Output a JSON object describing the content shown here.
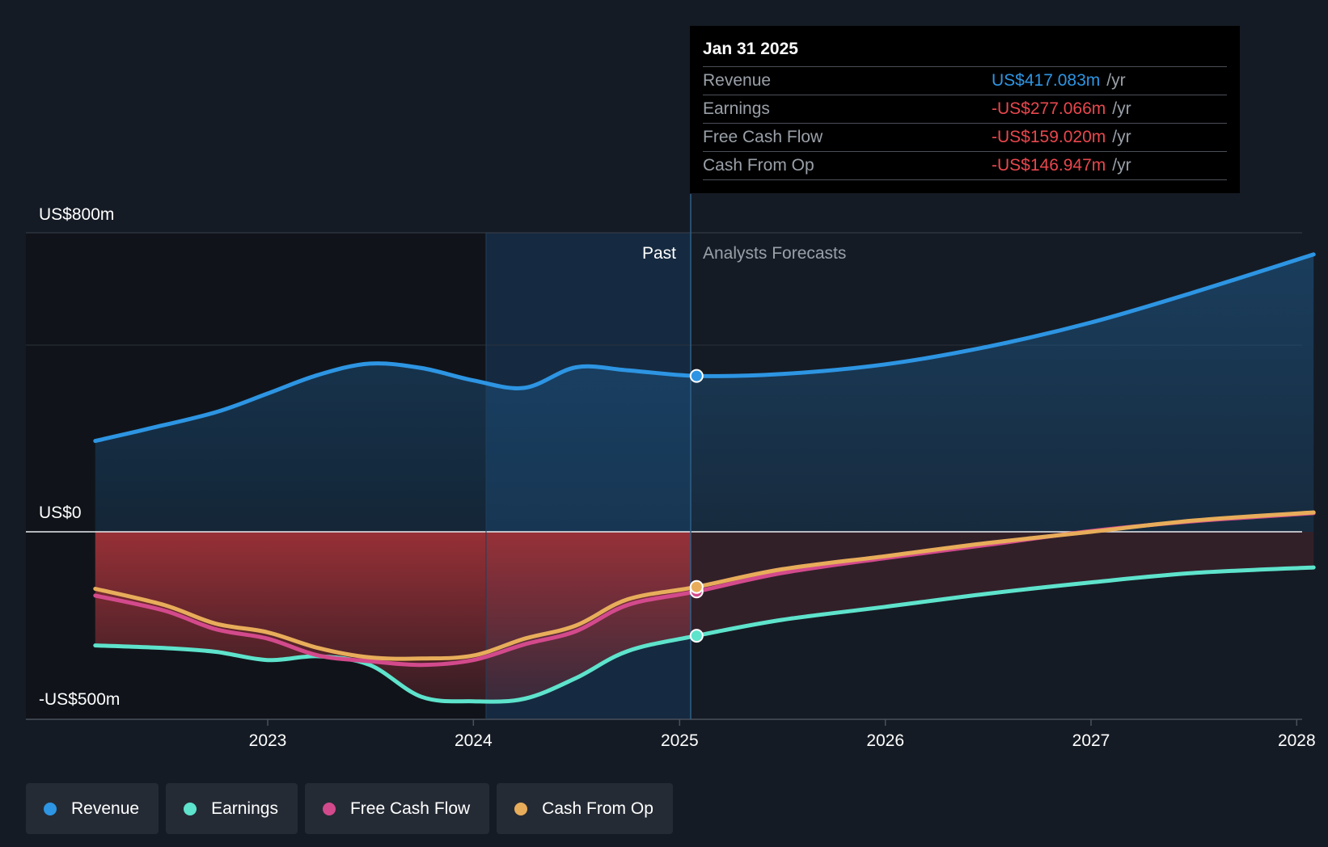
{
  "chart_data": {
    "type": "area",
    "x_ticks": [
      "2023",
      "2024",
      "2025",
      "2026",
      "2027",
      "2028"
    ],
    "y_labels": {
      "top": "US$800m",
      "zero": "US$0",
      "bottom": "-US$500m"
    },
    "ylim": [
      -500,
      800
    ],
    "grid": true,
    "past_label": "Past",
    "forecast_label": "Analysts Forecasts",
    "split_date": "2025-01-31",
    "series": [
      {
        "name": "Revenue",
        "color": "#2d95e3",
        "marker_value": 417.083,
        "points": [
          [
            "2022-03-01",
            243
          ],
          [
            "2022-06-01",
            275
          ],
          [
            "2022-10-01",
            320
          ],
          [
            "2023-01-01",
            370
          ],
          [
            "2023-04-01",
            420
          ],
          [
            "2023-07-01",
            450
          ],
          [
            "2023-10-01",
            438
          ],
          [
            "2024-01-01",
            405
          ],
          [
            "2024-04-01",
            385
          ],
          [
            "2024-07-01",
            440
          ],
          [
            "2024-10-01",
            432
          ],
          [
            "2025-01-31",
            417.083
          ],
          [
            "2025-07-01",
            422
          ],
          [
            "2026-01-01",
            448
          ],
          [
            "2026-07-01",
            495
          ],
          [
            "2027-01-01",
            560
          ],
          [
            "2027-07-01",
            640
          ],
          [
            "2028-01-31",
            742
          ]
        ]
      },
      {
        "name": "Earnings",
        "color": "#5ee3cc",
        "marker_value": -277.066,
        "points": [
          [
            "2022-03-01",
            -303
          ],
          [
            "2022-07-01",
            -310
          ],
          [
            "2022-10-01",
            -320
          ],
          [
            "2023-01-01",
            -342
          ],
          [
            "2023-04-01",
            -332
          ],
          [
            "2023-07-01",
            -355
          ],
          [
            "2023-10-01",
            -440
          ],
          [
            "2024-01-01",
            -452
          ],
          [
            "2024-04-01",
            -445
          ],
          [
            "2024-07-01",
            -390
          ],
          [
            "2024-10-01",
            -318
          ],
          [
            "2025-01-31",
            -277.066
          ],
          [
            "2025-07-01",
            -235
          ],
          [
            "2026-01-01",
            -200
          ],
          [
            "2026-07-01",
            -165
          ],
          [
            "2027-01-01",
            -135
          ],
          [
            "2027-07-01",
            -110
          ],
          [
            "2028-01-31",
            -95
          ]
        ]
      },
      {
        "name": "Free Cash Flow",
        "color": "#d34a8c",
        "marker_value": -159.02,
        "points": [
          [
            "2022-03-01",
            -170
          ],
          [
            "2022-07-01",
            -210
          ],
          [
            "2022-10-01",
            -260
          ],
          [
            "2023-01-01",
            -285
          ],
          [
            "2023-04-01",
            -330
          ],
          [
            "2023-07-01",
            -345
          ],
          [
            "2023-10-01",
            -355
          ],
          [
            "2024-01-01",
            -342
          ],
          [
            "2024-04-01",
            -300
          ],
          [
            "2024-07-01",
            -265
          ],
          [
            "2024-10-01",
            -195
          ],
          [
            "2025-01-31",
            -159.02
          ],
          [
            "2025-07-01",
            -110
          ],
          [
            "2026-01-01",
            -70
          ],
          [
            "2026-07-01",
            -35
          ],
          [
            "2027-01-01",
            2
          ],
          [
            "2027-07-01",
            28
          ],
          [
            "2028-01-31",
            50
          ]
        ]
      },
      {
        "name": "Cash From Op",
        "color": "#e8ad5a",
        "marker_value": -146.947,
        "points": [
          [
            "2022-03-01",
            -152
          ],
          [
            "2022-07-01",
            -195
          ],
          [
            "2022-10-01",
            -245
          ],
          [
            "2023-01-01",
            -268
          ],
          [
            "2023-04-01",
            -310
          ],
          [
            "2023-07-01",
            -335
          ],
          [
            "2023-10-01",
            -338
          ],
          [
            "2024-01-01",
            -330
          ],
          [
            "2024-04-01",
            -285
          ],
          [
            "2024-07-01",
            -250
          ],
          [
            "2024-10-01",
            -180
          ],
          [
            "2025-01-31",
            -146.947
          ],
          [
            "2025-07-01",
            -100
          ],
          [
            "2026-01-01",
            -65
          ],
          [
            "2026-07-01",
            -30
          ],
          [
            "2027-01-01",
            0
          ],
          [
            "2027-07-01",
            30
          ],
          [
            "2028-01-31",
            52
          ]
        ]
      }
    ]
  },
  "tooltip": {
    "date": "Jan 31 2025",
    "rows": [
      {
        "label": "Revenue",
        "value": "US$417.083m",
        "unit": "/yr",
        "color": "#2d95e3"
      },
      {
        "label": "Earnings",
        "value": "-US$277.066m",
        "unit": "/yr",
        "color": "#e8474d"
      },
      {
        "label": "Free Cash Flow",
        "value": "-US$159.020m",
        "unit": "/yr",
        "color": "#e8474d"
      },
      {
        "label": "Cash From Op",
        "value": "-US$146.947m",
        "unit": "/yr",
        "color": "#e8474d"
      }
    ]
  },
  "legend": [
    {
      "label": "Revenue",
      "color": "#2d95e3"
    },
    {
      "label": "Earnings",
      "color": "#5ee3cc"
    },
    {
      "label": "Free Cash Flow",
      "color": "#d34a8c"
    },
    {
      "label": "Cash From Op",
      "color": "#e8ad5a"
    }
  ]
}
